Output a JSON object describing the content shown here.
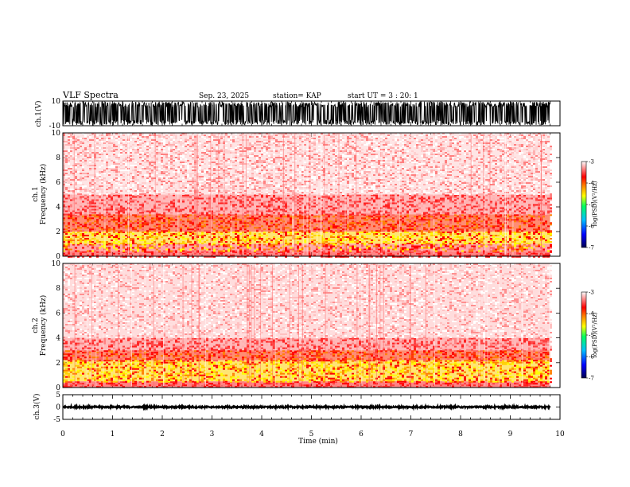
{
  "header": {
    "title": "VLF Spectra",
    "date": "Sep. 23, 2025",
    "station": "station= KAP",
    "start_ut": "start  UT =   3 : 20: 1"
  },
  "colors": {
    "axis": "#000000",
    "colorbar_stops": [
      "#000050",
      "#0000ff",
      "#00c0ff",
      "#00ff60",
      "#ffff00",
      "#ff8000",
      "#ff0000",
      "#ffffff"
    ]
  },
  "chart_data": [
    {
      "type": "line",
      "name": "ch1-waveform",
      "ylabel": "ch.1(V)",
      "ylim": [
        -10,
        10
      ],
      "yticks": [
        "10",
        "-10"
      ],
      "xlim": [
        0,
        10
      ],
      "data_extent_min": 9.8,
      "amplitude_range": [
        -9.5,
        9.5
      ]
    },
    {
      "type": "heatmap",
      "name": "ch1-spectrogram",
      "ylabel_line1": "ch.1",
      "ylabel_line2": "Frequency (kHz)",
      "ylim": [
        0,
        10
      ],
      "yticks": [
        "0",
        "2",
        "4",
        "6",
        "8",
        "10"
      ],
      "xlim": [
        0,
        10
      ],
      "bands_khz": [
        {
          "from": 0.0,
          "to": 0.4,
          "level": "red"
        },
        {
          "from": 0.4,
          "to": 1.0,
          "level": "red-mixed"
        },
        {
          "from": 1.0,
          "to": 2.0,
          "level": "yellow"
        },
        {
          "from": 2.0,
          "to": 3.4,
          "level": "red-orange"
        },
        {
          "from": 3.4,
          "to": 5.0,
          "level": "red-light"
        },
        {
          "from": 5.0,
          "to": 10.0,
          "level": "pink-sparse"
        }
      ],
      "colorbar": {
        "label": "log(PSD)(V²/Hz)",
        "min": -7,
        "max": -3,
        "ticks": [
          "-3",
          "-4",
          "-5",
          "-6",
          "-7"
        ]
      }
    },
    {
      "type": "heatmap",
      "name": "ch2-spectrogram",
      "ylabel_line1": "ch.2",
      "ylabel_line2": "Frequency (kHz)",
      "ylim": [
        0,
        10
      ],
      "yticks": [
        "0",
        "2",
        "4",
        "6",
        "8",
        "10"
      ],
      "xlim": [
        0,
        10
      ],
      "bands_khz": [
        {
          "from": 0.0,
          "to": 0.5,
          "level": "red"
        },
        {
          "from": 0.5,
          "to": 2.2,
          "level": "yellow"
        },
        {
          "from": 2.2,
          "to": 3.0,
          "level": "red-orange"
        },
        {
          "from": 3.0,
          "to": 4.0,
          "level": "red-light"
        },
        {
          "from": 4.0,
          "to": 10.0,
          "level": "white-sparse"
        }
      ],
      "colorbar": {
        "label": "log(PSD)(V²/Hz)",
        "min": -7,
        "max": -3,
        "ticks": [
          "-3",
          "-4",
          "-5",
          "-6",
          "-7"
        ]
      }
    },
    {
      "type": "line",
      "name": "ch3-waveform",
      "ylabel": "ch.3(V)",
      "ylim": [
        -5,
        5
      ],
      "yticks": [
        "5",
        "0",
        "-5"
      ],
      "xlim": [
        0,
        10
      ],
      "data_extent_min": 9.8,
      "level": 0.0,
      "amplitude_range": [
        -0.3,
        0.3
      ]
    }
  ],
  "xaxis": {
    "label": "Time  (min)",
    "ticks": [
      "0",
      "1",
      "2",
      "3",
      "4",
      "5",
      "6",
      "7",
      "8",
      "9",
      "10"
    ]
  }
}
